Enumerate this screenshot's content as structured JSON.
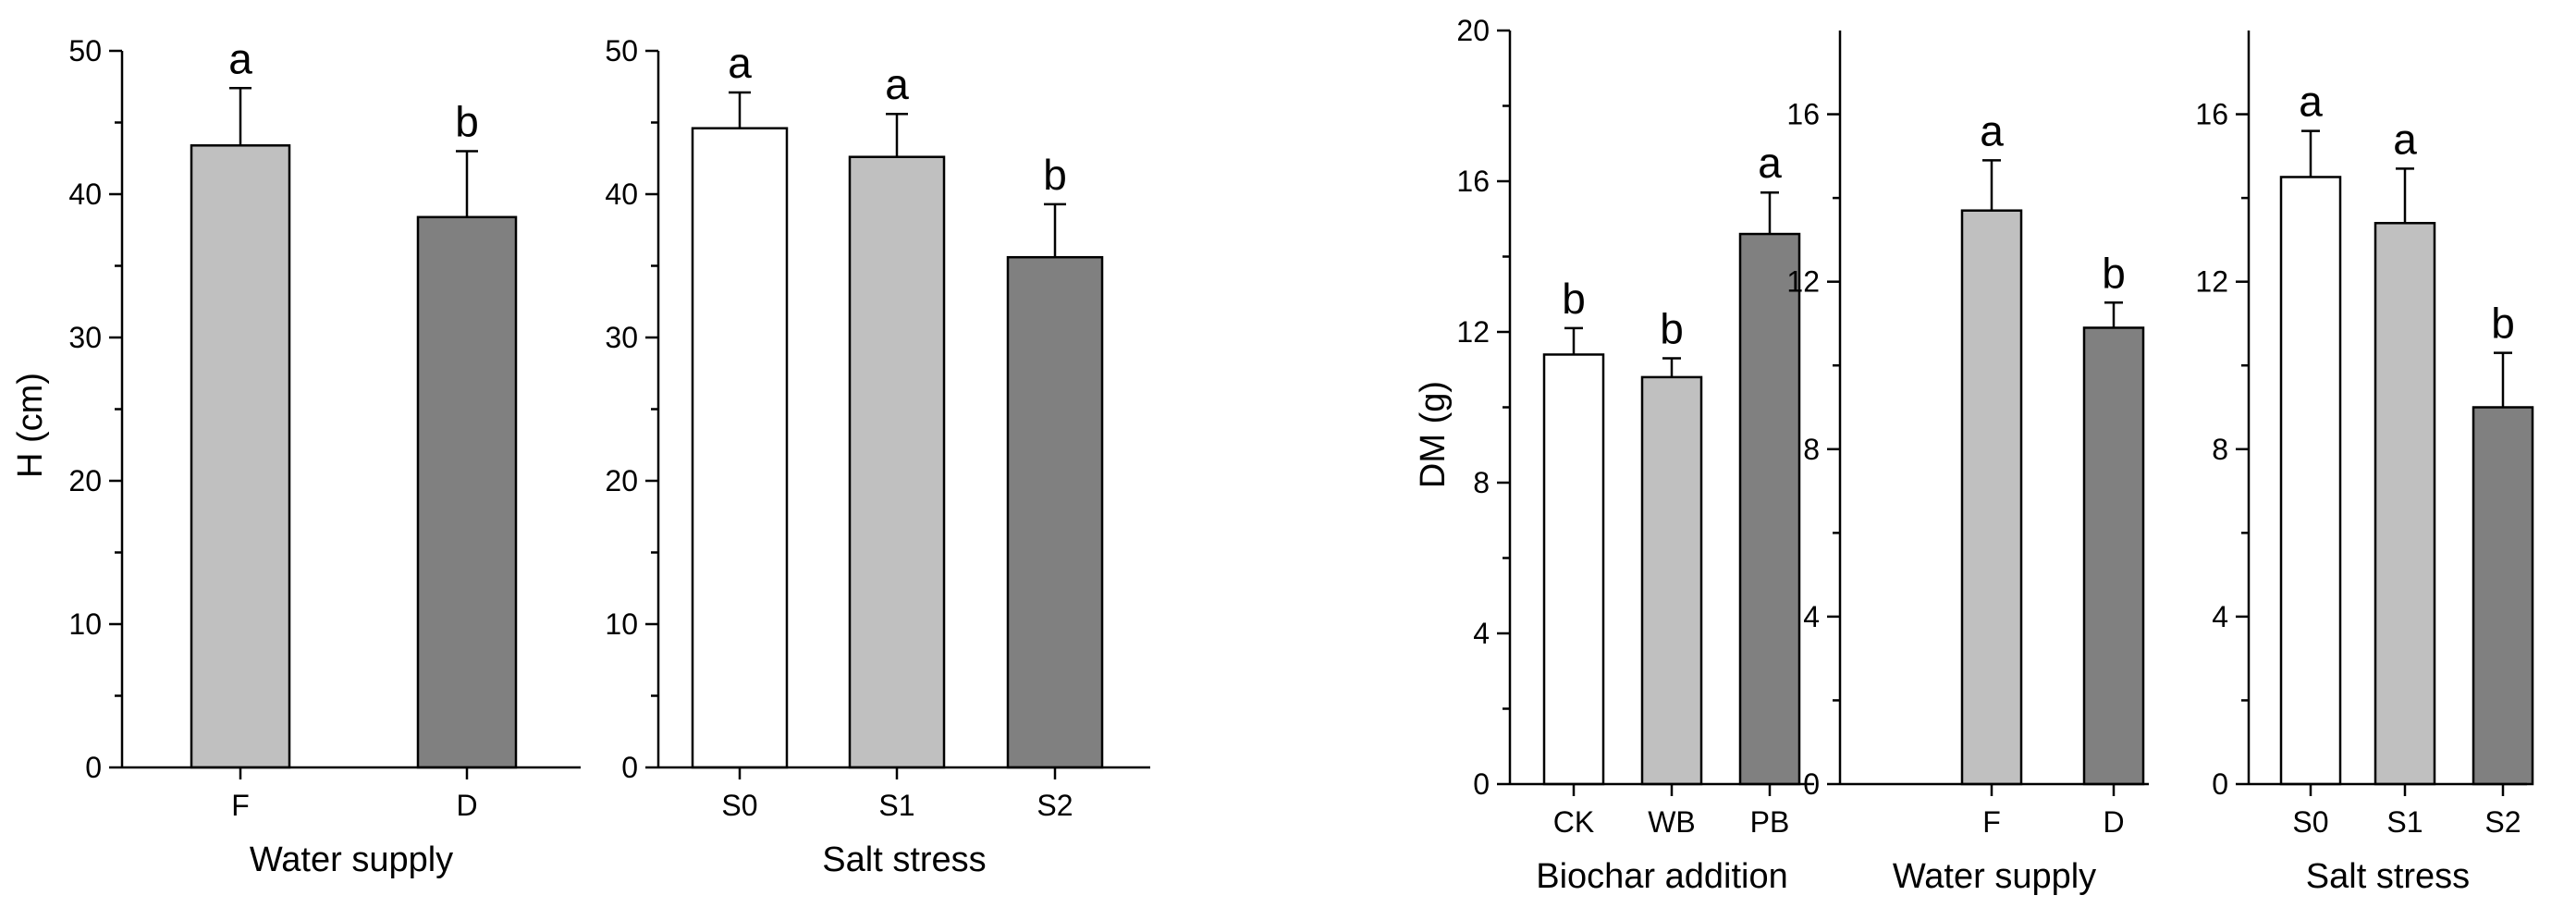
{
  "chart_data": [
    {
      "type": "bar",
      "id": "h-water",
      "ylabel": "H (cm)",
      "xlabel": "Water supply",
      "ylim": [
        0,
        50
      ],
      "yticks": [
        0,
        10,
        20,
        30,
        40,
        50
      ],
      "categories": [
        "F",
        "D"
      ],
      "values": [
        43.4,
        38.4
      ],
      "errors": [
        4.0,
        4.6
      ],
      "letters": [
        "a",
        "b"
      ],
      "colors": [
        "#c0c0c0",
        "#808080"
      ]
    },
    {
      "type": "bar",
      "id": "h-salt",
      "ylabel": "",
      "xlabel": "Salt stress",
      "ylim": [
        0,
        50
      ],
      "yticks": [
        0,
        10,
        20,
        30,
        40,
        50
      ],
      "categories": [
        "S0",
        "S1",
        "S2"
      ],
      "values": [
        44.6,
        42.6,
        35.6
      ],
      "errors": [
        2.5,
        3.0,
        3.7
      ],
      "letters": [
        "a",
        "a",
        "b"
      ],
      "colors": [
        "#ffffff",
        "#c0c0c0",
        "#808080"
      ]
    },
    {
      "type": "bar",
      "id": "dm-biochar",
      "ylabel": "DM (g)",
      "xlabel": "Biochar addition",
      "ylim": [
        0,
        20
      ],
      "yticks": [
        0,
        4,
        8,
        12,
        16,
        20
      ],
      "categories": [
        "CK",
        "WB",
        "PB"
      ],
      "values": [
        11.4,
        10.8,
        14.6
      ],
      "errors": [
        0.7,
        0.5,
        1.1
      ],
      "letters": [
        "b",
        "b",
        "a"
      ],
      "colors": [
        "#ffffff",
        "#c0c0c0",
        "#808080"
      ]
    },
    {
      "type": "bar",
      "id": "dm-water",
      "ylabel": "",
      "xlabel": "Water supply",
      "ylim": [
        0,
        18
      ],
      "yticks": [
        0,
        4,
        8,
        12,
        16
      ],
      "categories": [
        "F",
        "D"
      ],
      "values": [
        13.7,
        10.9
      ],
      "errors": [
        1.2,
        0.6
      ],
      "letters": [
        "a",
        "b"
      ],
      "colors": [
        "#c0c0c0",
        "#808080"
      ]
    },
    {
      "type": "bar",
      "id": "dm-salt",
      "ylabel": "",
      "xlabel": "Salt stress",
      "ylim": [
        0,
        18
      ],
      "yticks": [
        0,
        4,
        8,
        12,
        16
      ],
      "categories": [
        "S0",
        "S1",
        "S2"
      ],
      "values": [
        14.5,
        13.4,
        9.0
      ],
      "errors": [
        1.1,
        1.3,
        1.3
      ],
      "letters": [
        "a",
        "a",
        "b"
      ],
      "colors": [
        "#ffffff",
        "#c0c0c0",
        "#808080"
      ]
    }
  ]
}
